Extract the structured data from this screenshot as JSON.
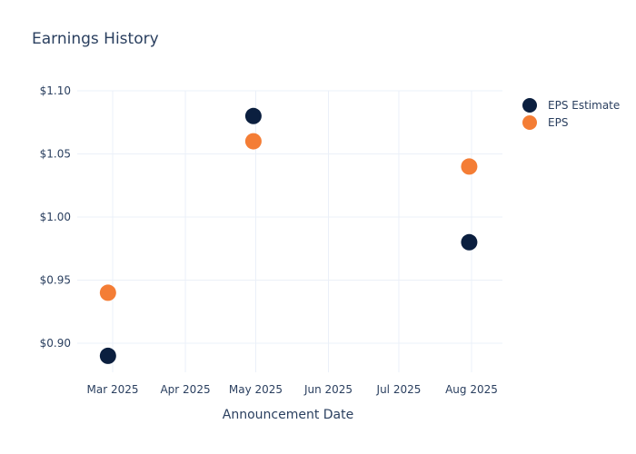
{
  "chart_data": {
    "type": "scatter",
    "title": "Earnings History",
    "xlabel": "Announcement Date",
    "ylabel": "",
    "x_ticks": [
      "Mar 2025",
      "Apr 2025",
      "May 2025",
      "Jun 2025",
      "Jul 2025",
      "Aug 2025"
    ],
    "y_ticks": [
      "$0.90",
      "$0.95",
      "$1.00",
      "$1.05",
      "$1.10"
    ],
    "ylim": [
      0.877,
      1.1
    ],
    "grid": true,
    "legend_position": "right",
    "x": [
      "2025-02-27",
      "2025-04-30",
      "2025-07-31"
    ],
    "series": [
      {
        "name": "EPS Estimate",
        "color": "#0b1f3f",
        "values": [
          0.89,
          1.08,
          0.98
        ]
      },
      {
        "name": "EPS",
        "color": "#f47d35",
        "values": [
          0.94,
          1.06,
          1.04
        ]
      }
    ]
  },
  "legend": {
    "items": [
      {
        "label": "EPS Estimate",
        "color": "#0b1f3f"
      },
      {
        "label": "EPS",
        "color": "#f47d35"
      }
    ]
  }
}
